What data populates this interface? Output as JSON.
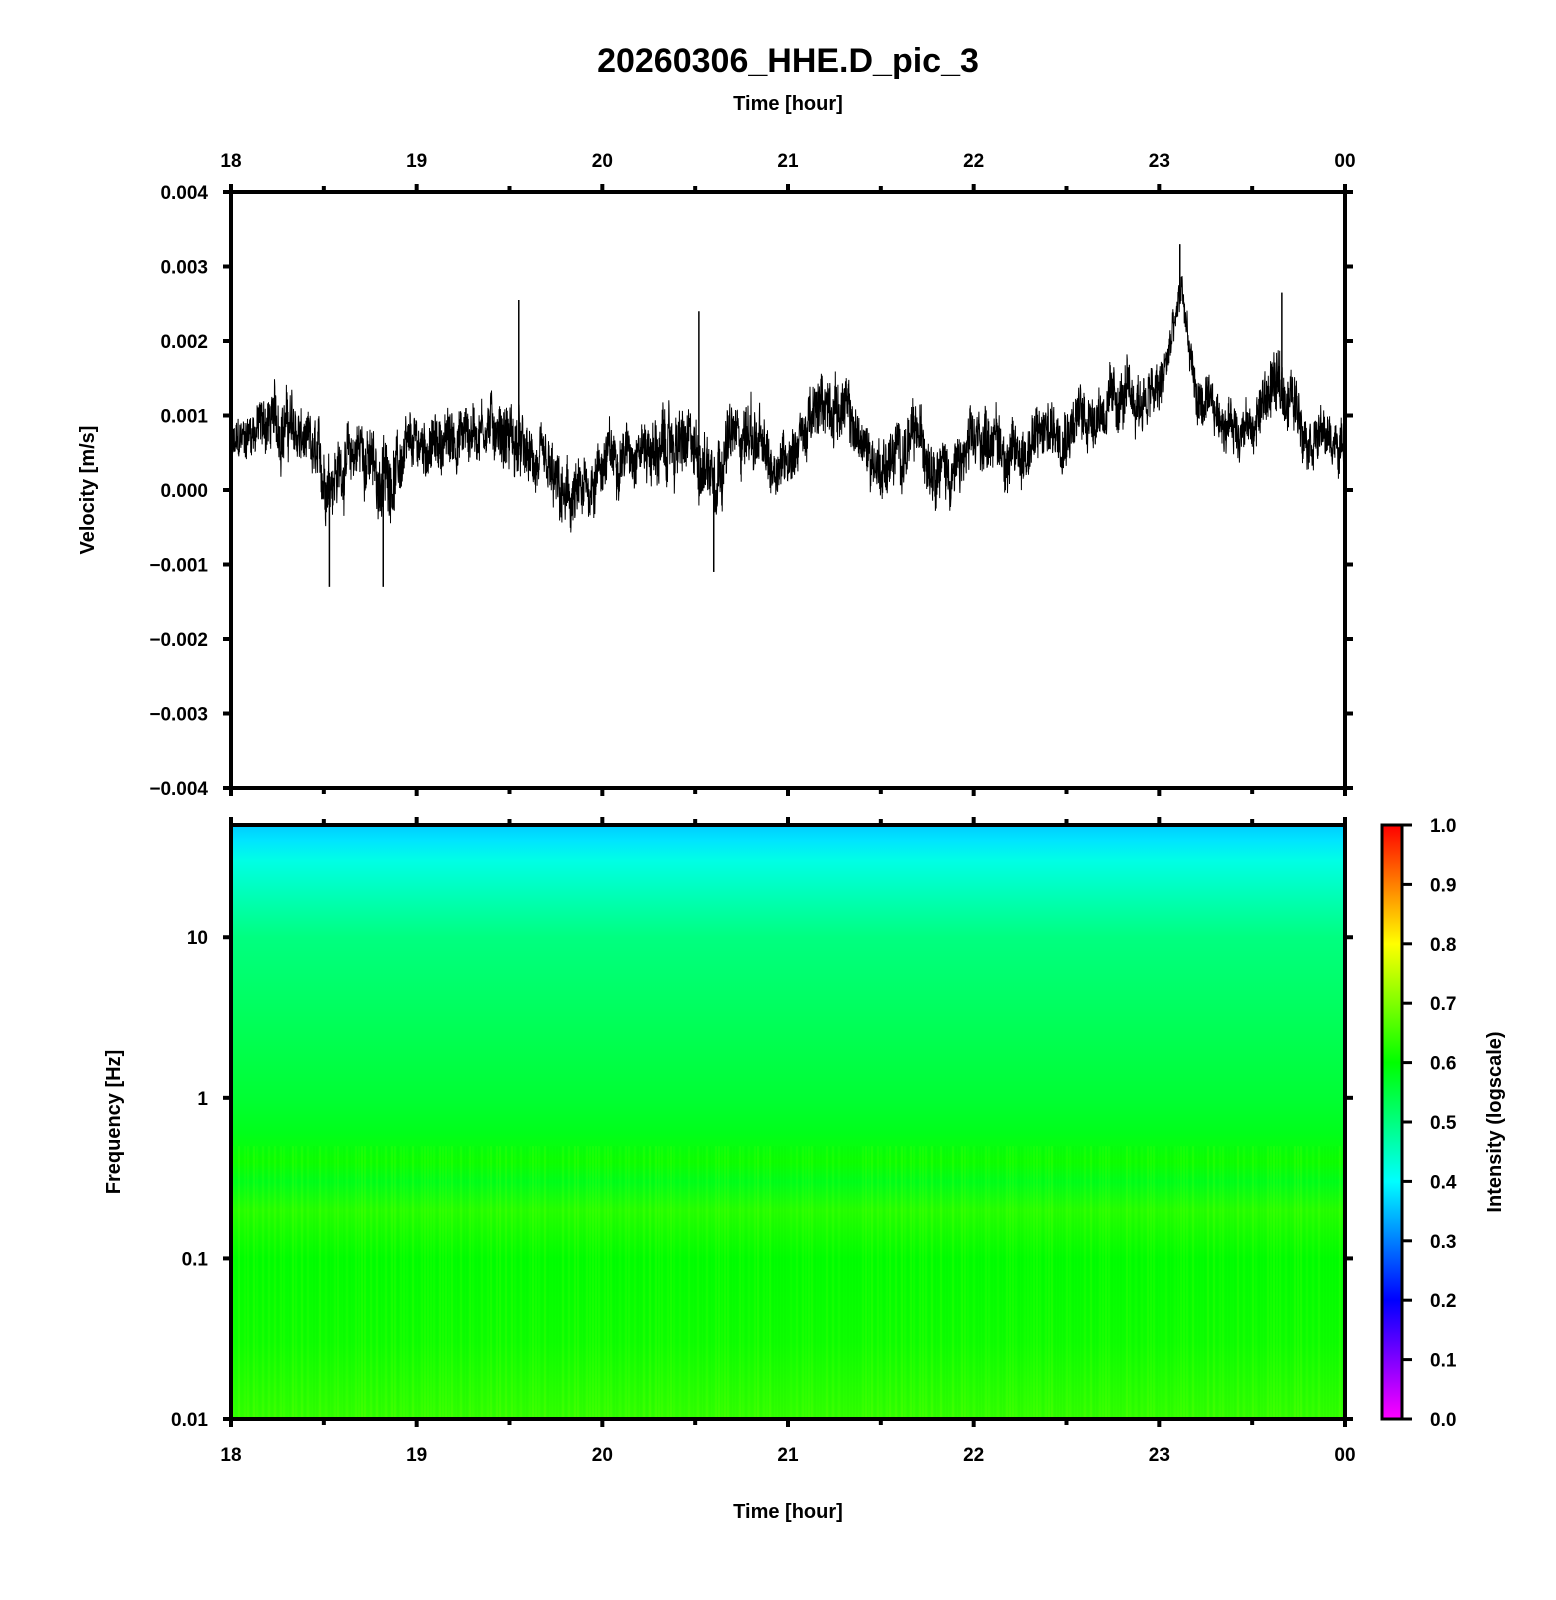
{
  "title": "20260306_HHE.D_pic_3",
  "chart_data": [
    {
      "type": "line",
      "panel": "waveform",
      "xlabel_top": "Time [hour]",
      "ylabel": "Velocity [m/s]",
      "x_ticks": [
        "18",
        "19",
        "20",
        "21",
        "22",
        "23",
        "00"
      ],
      "xlim": [
        18,
        24
      ],
      "ylim": [
        -0.004,
        0.004
      ],
      "y_ticks": [
        "0.004",
        "0.003",
        "0.002",
        "0.001",
        "0.000",
        "−0.001",
        "−0.002",
        "−0.003",
        "−0.004"
      ],
      "line_color": "#000000",
      "envelope": {
        "x": [
          18.0,
          18.1,
          18.2,
          18.3,
          18.4,
          18.5,
          18.6,
          18.7,
          18.8,
          18.9,
          19.0,
          19.1,
          19.2,
          19.3,
          19.4,
          19.5,
          19.6,
          19.7,
          19.8,
          19.9,
          20.0,
          20.1,
          20.2,
          20.3,
          20.4,
          20.5,
          20.6,
          20.7,
          20.8,
          20.9,
          21.0,
          21.1,
          21.2,
          21.3,
          21.4,
          21.5,
          21.6,
          21.7,
          21.8,
          21.9,
          22.0,
          22.1,
          22.2,
          22.3,
          22.4,
          22.5,
          22.6,
          22.7,
          22.8,
          22.9,
          23.0,
          23.1,
          23.12,
          23.2,
          23.3,
          23.4,
          23.5,
          23.6,
          23.7,
          23.8,
          23.9,
          24.0
        ],
        "center": [
          0.0005,
          0.0008,
          0.0009,
          0.0009,
          0.0006,
          0.0002,
          0.0003,
          0.0006,
          0.0001,
          0.0003,
          0.0006,
          0.0006,
          0.0007,
          0.0008,
          0.0009,
          0.0007,
          0.0004,
          0.0002,
          -0.0002,
          -0.0001,
          0.0004,
          0.0005,
          0.0006,
          0.0005,
          0.0006,
          0.0005,
          0.0003,
          0.0007,
          0.0008,
          0.0003,
          0.0005,
          0.0008,
          0.0012,
          0.0011,
          0.0006,
          0.0003,
          0.0005,
          0.0007,
          0.0004,
          0.0002,
          0.0006,
          0.0008,
          0.0004,
          0.0006,
          0.0008,
          0.0009,
          0.001,
          0.0011,
          0.0012,
          0.0012,
          0.0013,
          0.0024,
          0.0027,
          0.0012,
          0.001,
          0.0009,
          0.0008,
          0.0014,
          0.0013,
          0.0008,
          0.0007,
          0.0005
        ],
        "amplitude": [
          0.0006,
          0.0006,
          0.0008,
          0.0009,
          0.0007,
          0.0009,
          0.0008,
          0.0008,
          0.001,
          0.0008,
          0.0007,
          0.0007,
          0.0008,
          0.0008,
          0.0007,
          0.001,
          0.0007,
          0.0008,
          0.0009,
          0.0008,
          0.0008,
          0.0007,
          0.0007,
          0.0009,
          0.0009,
          0.0009,
          0.001,
          0.0008,
          0.0009,
          0.0008,
          0.0007,
          0.0008,
          0.0008,
          0.0008,
          0.0007,
          0.0008,
          0.0008,
          0.0008,
          0.0008,
          0.0008,
          0.0008,
          0.0008,
          0.0008,
          0.0008,
          0.0008,
          0.0008,
          0.0008,
          0.0007,
          0.0008,
          0.0008,
          0.0007,
          0.0005,
          0.0005,
          0.0007,
          0.0006,
          0.0007,
          0.0006,
          0.0009,
          0.0008,
          0.0007,
          0.0006,
          0.0006
        ]
      },
      "spikes": [
        {
          "x": 19.55,
          "y": 0.00255
        },
        {
          "x": 20.52,
          "y": 0.0024
        },
        {
          "x": 20.6,
          "y": -0.0011
        },
        {
          "x": 18.53,
          "y": -0.0013
        },
        {
          "x": 18.82,
          "y": -0.0013
        },
        {
          "x": 23.11,
          "y": 0.0033
        },
        {
          "x": 23.66,
          "y": 0.00265
        }
      ]
    },
    {
      "type": "heatmap",
      "panel": "spectrogram",
      "xlabel": "Time [hour]",
      "ylabel": "Frequency [Hz]",
      "x_ticks": [
        "18",
        "19",
        "20",
        "21",
        "22",
        "23",
        "00"
      ],
      "xlim": [
        18,
        24
      ],
      "y_scale": "log",
      "ylim": [
        0.01,
        50
      ],
      "y_ticks": [
        "10",
        "1",
        "0.1",
        "0.01"
      ],
      "y_tick_values": [
        10,
        1,
        0.1,
        0.01
      ],
      "intensity_profile": {
        "frequency_hz": [
          50,
          40,
          30,
          20,
          10,
          3,
          1,
          0.6,
          0.4,
          0.3,
          0.2,
          0.1,
          0.03,
          0.01
        ],
        "intensity": [
          0.36,
          0.38,
          0.42,
          0.45,
          0.5,
          0.53,
          0.56,
          0.58,
          0.61,
          0.58,
          0.63,
          0.6,
          0.61,
          0.64
        ]
      },
      "colorbar": {
        "label": "Intensity (logscale)",
        "ticks": [
          "1.0",
          "0.9",
          "0.8",
          "0.7",
          "0.6",
          "0.5",
          "0.4",
          "0.3",
          "0.2",
          "0.1",
          "0.0"
        ],
        "range": [
          0,
          1
        ],
        "colormap": [
          "#ff00ff",
          "#0000ff",
          "#00ffff",
          "#00ff00",
          "#ffff00",
          "#ff0000"
        ]
      }
    }
  ]
}
